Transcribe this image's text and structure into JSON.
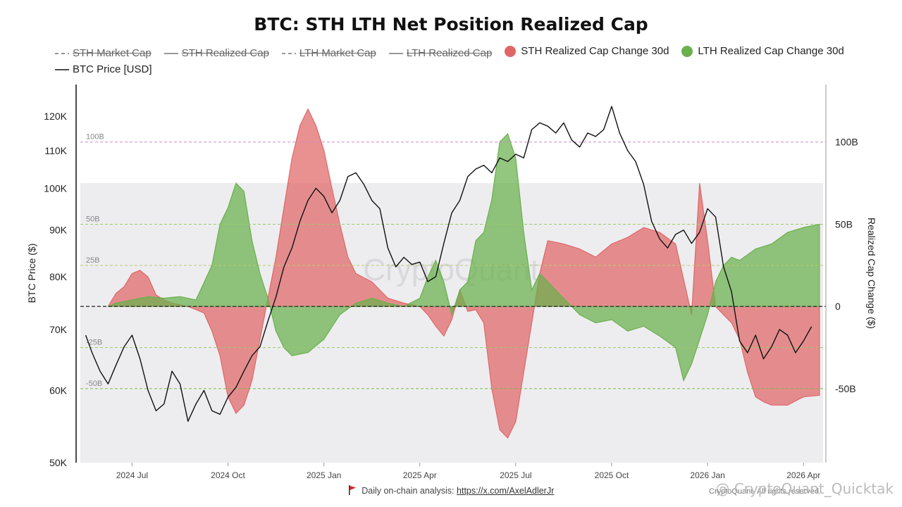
{
  "title": "BTC: STH LTH Net Position Realized Cap",
  "legend": [
    {
      "label": "STH Market Cap",
      "color": "#888888",
      "style": "dashed",
      "hidden": true
    },
    {
      "label": "STH Realized Cap",
      "color": "#888888",
      "style": "solid",
      "hidden": true
    },
    {
      "label": "LTH Market Cap",
      "color": "#888888",
      "style": "dashed",
      "hidden": true
    },
    {
      "label": "LTH Realized Cap",
      "color": "#888888",
      "style": "solid",
      "hidden": true
    },
    {
      "label": "STH Realized Cap Change 30d",
      "color": "#e06666",
      "style": "dot",
      "hidden": false
    },
    {
      "label": "LTH Realized Cap Change 30d",
      "color": "#6ab04c",
      "style": "dot",
      "hidden": false
    },
    {
      "label": "BTC Price [USD]",
      "color": "#111111",
      "style": "solid",
      "hidden": false
    }
  ],
  "footer": {
    "text": "Daily on-chain analysis:",
    "link": "https://x.com/AxelAdlerJr"
  },
  "watermark": {
    "center": "CryptoQuant",
    "bottom_right": "@ CryptoQuant_Quicktak",
    "copyright": "CryptoQuant. All rights reserved."
  },
  "chart_data": {
    "type": "area",
    "x_labels": [
      "2024 Jul",
      "2024 Oct",
      "2025 Jan",
      "2025 Apr",
      "2025 Jul",
      "2025 Oct",
      "2026 Jan",
      "2026 Apr"
    ],
    "x_label_months": [
      6,
      9,
      12,
      15,
      18,
      21,
      24,
      27
    ],
    "x_range": [
      4.25,
      27.7
    ],
    "y_left": {
      "label": "BTC Price ($)",
      "scale": "log",
      "range": [
        50000,
        130000
      ],
      "ticks": [
        50000,
        60000,
        70000,
        80000,
        90000,
        100000,
        110000,
        120000
      ],
      "tick_labels": [
        "50K",
        "60K",
        "70K",
        "80K",
        "90K",
        "100K",
        "110K",
        "120K"
      ]
    },
    "y_right": {
      "label": "Realized Cap Change ($)",
      "range": [
        -95,
        135
      ],
      "ticks": [
        -50,
        0,
        50,
        100
      ],
      "tick_labels": [
        "-50B",
        "0",
        "50B",
        "100B"
      ]
    },
    "reference_lines": [
      {
        "value": 100,
        "label": "100B",
        "color": "#cc88cc"
      },
      {
        "value": 50,
        "label": "50B",
        "color": "#99cc66"
      },
      {
        "value": 25,
        "label": "25B",
        "color": "#bbcc66"
      },
      {
        "value": 0,
        "label": "",
        "color": "#333333"
      },
      {
        "value": -25,
        "label": "-25B",
        "color": "#99cc66"
      },
      {
        "value": -50,
        "label": "-50B",
        "color": "#77bb44"
      }
    ],
    "shaded_band": [
      -95,
      75
    ],
    "series": [
      {
        "name": "STH Realized Cap Change 30d",
        "color": "#e06666",
        "points": [
          [
            5.25,
            0
          ],
          [
            5.5,
            8
          ],
          [
            5.75,
            12
          ],
          [
            6.0,
            20
          ],
          [
            6.25,
            22
          ],
          [
            6.5,
            18
          ],
          [
            6.75,
            7
          ],
          [
            7.0,
            4
          ],
          [
            7.25,
            2
          ],
          [
            7.75,
            0
          ],
          [
            8.25,
            -4
          ],
          [
            8.5,
            -15
          ],
          [
            8.75,
            -30
          ],
          [
            9.0,
            -55
          ],
          [
            9.25,
            -65
          ],
          [
            9.5,
            -60
          ],
          [
            9.75,
            -45
          ],
          [
            10.0,
            -20
          ],
          [
            10.25,
            5
          ],
          [
            10.5,
            30
          ],
          [
            10.75,
            60
          ],
          [
            11.0,
            90
          ],
          [
            11.25,
            110
          ],
          [
            11.5,
            120
          ],
          [
            11.75,
            110
          ],
          [
            12.0,
            95
          ],
          [
            12.25,
            72
          ],
          [
            12.5,
            50
          ],
          [
            12.75,
            30
          ],
          [
            13.0,
            20
          ],
          [
            13.5,
            15
          ],
          [
            14.0,
            5
          ],
          [
            14.5,
            2
          ],
          [
            15.0,
            0
          ],
          [
            15.25,
            -5
          ],
          [
            15.5,
            -12
          ],
          [
            15.75,
            -18
          ],
          [
            16.0,
            -8
          ],
          [
            16.25,
            10
          ],
          [
            16.5,
            -3
          ],
          [
            16.75,
            -2
          ],
          [
            17.0,
            -10
          ],
          [
            17.25,
            -50
          ],
          [
            17.5,
            -75
          ],
          [
            17.75,
            -80
          ],
          [
            18.0,
            -70
          ],
          [
            18.25,
            -40
          ],
          [
            18.5,
            -10
          ],
          [
            18.75,
            20
          ],
          [
            19.0,
            40
          ],
          [
            19.5,
            38
          ],
          [
            20.0,
            35
          ],
          [
            20.5,
            30
          ],
          [
            21.0,
            38
          ],
          [
            21.5,
            42
          ],
          [
            22.0,
            48
          ],
          [
            22.5,
            45
          ],
          [
            23.0,
            38
          ],
          [
            23.5,
            -5
          ],
          [
            23.75,
            75
          ],
          [
            24.0,
            40
          ],
          [
            24.25,
            0
          ],
          [
            24.5,
            -5
          ],
          [
            24.75,
            -10
          ],
          [
            25.0,
            -20
          ],
          [
            25.25,
            -40
          ],
          [
            25.5,
            -55
          ],
          [
            25.75,
            -58
          ],
          [
            26.0,
            -60
          ],
          [
            26.5,
            -60
          ],
          [
            27.0,
            -55
          ],
          [
            27.5,
            -54
          ]
        ]
      },
      {
        "name": "LTH Realized Cap Change 30d",
        "color": "#6ab04c",
        "points": [
          [
            5.25,
            0
          ],
          [
            5.5,
            2
          ],
          [
            6.0,
            4
          ],
          [
            6.5,
            6
          ],
          [
            7.0,
            5
          ],
          [
            7.5,
            6
          ],
          [
            8.0,
            4
          ],
          [
            8.5,
            25
          ],
          [
            8.75,
            50
          ],
          [
            9.0,
            60
          ],
          [
            9.25,
            75
          ],
          [
            9.5,
            70
          ],
          [
            9.75,
            40
          ],
          [
            10.0,
            20
          ],
          [
            10.25,
            5
          ],
          [
            10.5,
            -15
          ],
          [
            10.75,
            -25
          ],
          [
            11.0,
            -30
          ],
          [
            11.5,
            -28
          ],
          [
            12.0,
            -20
          ],
          [
            12.5,
            -5
          ],
          [
            13.0,
            2
          ],
          [
            13.5,
            5
          ],
          [
            14.0,
            2
          ],
          [
            14.5,
            0
          ],
          [
            15.0,
            5
          ],
          [
            15.25,
            18
          ],
          [
            15.5,
            28
          ],
          [
            15.75,
            15
          ],
          [
            16.0,
            -5
          ],
          [
            16.25,
            10
          ],
          [
            16.5,
            15
          ],
          [
            16.75,
            40
          ],
          [
            17.0,
            45
          ],
          [
            17.25,
            65
          ],
          [
            17.5,
            100
          ],
          [
            17.75,
            105
          ],
          [
            18.0,
            90
          ],
          [
            18.25,
            45
          ],
          [
            18.5,
            10
          ],
          [
            18.75,
            20
          ],
          [
            19.0,
            15
          ],
          [
            19.5,
            5
          ],
          [
            20.0,
            -5
          ],
          [
            20.5,
            -10
          ],
          [
            21.0,
            -8
          ],
          [
            21.5,
            -15
          ],
          [
            22.0,
            -12
          ],
          [
            22.5,
            -18
          ],
          [
            23.0,
            -25
          ],
          [
            23.25,
            -45
          ],
          [
            23.5,
            -35
          ],
          [
            23.75,
            -20
          ],
          [
            24.0,
            -5
          ],
          [
            24.25,
            15
          ],
          [
            24.5,
            25
          ],
          [
            24.75,
            30
          ],
          [
            25.0,
            28
          ],
          [
            25.5,
            35
          ],
          [
            26.0,
            38
          ],
          [
            26.5,
            45
          ],
          [
            27.0,
            48
          ],
          [
            27.5,
            50
          ]
        ]
      },
      {
        "name": "BTC Price [USD]",
        "color": "#111111",
        "points": [
          [
            4.55,
            69000
          ],
          [
            4.75,
            66000
          ],
          [
            5.0,
            63000
          ],
          [
            5.25,
            61000
          ],
          [
            5.5,
            64000
          ],
          [
            5.75,
            67000
          ],
          [
            6.0,
            69000
          ],
          [
            6.25,
            65000
          ],
          [
            6.5,
            60000
          ],
          [
            6.75,
            57000
          ],
          [
            7.0,
            58000
          ],
          [
            7.25,
            63000
          ],
          [
            7.5,
            61000
          ],
          [
            7.75,
            55500
          ],
          [
            8.0,
            58000
          ],
          [
            8.25,
            60000
          ],
          [
            8.5,
            57000
          ],
          [
            8.75,
            56500
          ],
          [
            9.0,
            59000
          ],
          [
            9.25,
            60500
          ],
          [
            9.5,
            63000
          ],
          [
            9.75,
            65500
          ],
          [
            10.0,
            67000
          ],
          [
            10.25,
            71500
          ],
          [
            10.5,
            76000
          ],
          [
            10.75,
            82000
          ],
          [
            11.0,
            86000
          ],
          [
            11.25,
            92000
          ],
          [
            11.5,
            97000
          ],
          [
            11.75,
            100000
          ],
          [
            12.0,
            98000
          ],
          [
            12.25,
            94000
          ],
          [
            12.5,
            97000
          ],
          [
            12.75,
            103000
          ],
          [
            13.0,
            104000
          ],
          [
            13.25,
            101000
          ],
          [
            13.5,
            97000
          ],
          [
            13.75,
            95000
          ],
          [
            14.0,
            86000
          ],
          [
            14.25,
            82000
          ],
          [
            14.5,
            84000
          ],
          [
            14.75,
            82500
          ],
          [
            15.0,
            83000
          ],
          [
            15.25,
            79000
          ],
          [
            15.5,
            80000
          ],
          [
            15.75,
            87000
          ],
          [
            16.0,
            94000
          ],
          [
            16.25,
            97000
          ],
          [
            16.5,
            103000
          ],
          [
            16.75,
            105000
          ],
          [
            17.0,
            106000
          ],
          [
            17.25,
            104000
          ],
          [
            17.5,
            108000
          ],
          [
            17.75,
            107000
          ],
          [
            18.0,
            109000
          ],
          [
            18.25,
            108000
          ],
          [
            18.5,
            116000
          ],
          [
            18.75,
            118000
          ],
          [
            19.0,
            117000
          ],
          [
            19.25,
            115000
          ],
          [
            19.5,
            118000
          ],
          [
            19.75,
            113000
          ],
          [
            20.0,
            111000
          ],
          [
            20.25,
            115000
          ],
          [
            20.5,
            114000
          ],
          [
            20.75,
            116000
          ],
          [
            21.0,
            123000
          ],
          [
            21.25,
            115000
          ],
          [
            21.5,
            110000
          ],
          [
            21.75,
            107000
          ],
          [
            22.0,
            101000
          ],
          [
            22.25,
            92000
          ],
          [
            22.5,
            88000
          ],
          [
            22.75,
            86000
          ],
          [
            23.0,
            89000
          ],
          [
            23.25,
            90000
          ],
          [
            23.5,
            87000
          ],
          [
            23.75,
            89500
          ],
          [
            24.0,
            95000
          ],
          [
            24.25,
            93000
          ],
          [
            24.5,
            82000
          ],
          [
            24.75,
            77000
          ],
          [
            25.0,
            68000
          ],
          [
            25.25,
            66000
          ],
          [
            25.5,
            69000
          ],
          [
            25.75,
            65000
          ],
          [
            26.0,
            67000
          ],
          [
            26.25,
            70000
          ],
          [
            26.5,
            69000
          ],
          [
            26.75,
            66000
          ],
          [
            27.0,
            68000
          ],
          [
            27.25,
            70500
          ]
        ]
      }
    ]
  }
}
